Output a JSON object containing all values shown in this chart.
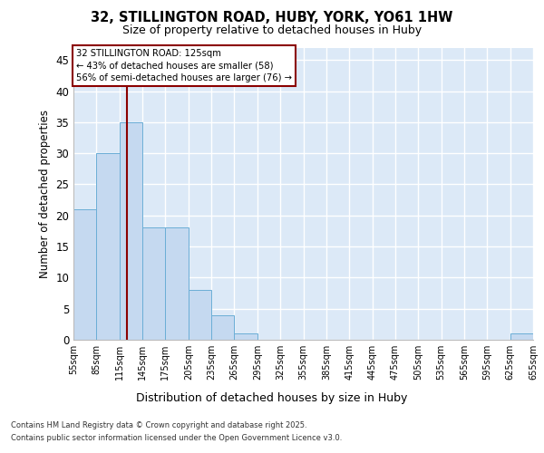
{
  "title_line1": "32, STILLINGTON ROAD, HUBY, YORK, YO61 1HW",
  "title_line2": "Size of property relative to detached houses in Huby",
  "xlabel": "Distribution of detached houses by size in Huby",
  "ylabel": "Number of detached properties",
  "bar_values": [
    21,
    30,
    35,
    18,
    18,
    8,
    4,
    1,
    0,
    0,
    0,
    0,
    0,
    0,
    0,
    0,
    0,
    0,
    0,
    1
  ],
  "bar_labels": [
    "55sqm",
    "85sqm",
    "115sqm",
    "145sqm",
    "175sqm",
    "205sqm",
    "235sqm",
    "265sqm",
    "295sqm",
    "325sqm",
    "355sqm",
    "385sqm",
    "415sqm",
    "445sqm",
    "475sqm",
    "505sqm",
    "535sqm",
    "565sqm",
    "595sqm",
    "625sqm",
    "655sqm"
  ],
  "bar_color": "#c5d9f0",
  "bar_edge_color": "#6baed6",
  "bar_width": 1.0,
  "ylim": [
    0,
    47
  ],
  "yticks": [
    0,
    5,
    10,
    15,
    20,
    25,
    30,
    35,
    40,
    45
  ],
  "red_line_x": 2.333,
  "annotation_text_line1": "32 STILLINGTON ROAD: 125sqm",
  "annotation_text_line2": "← 43% of detached houses are smaller (58)",
  "annotation_text_line3": "56% of semi-detached houses are larger (76) →",
  "background_color": "#dce9f7",
  "grid_color": "#ffffff",
  "footer_line1": "Contains HM Land Registry data © Crown copyright and database right 2025.",
  "footer_line2": "Contains public sector information licensed under the Open Government Licence v3.0."
}
